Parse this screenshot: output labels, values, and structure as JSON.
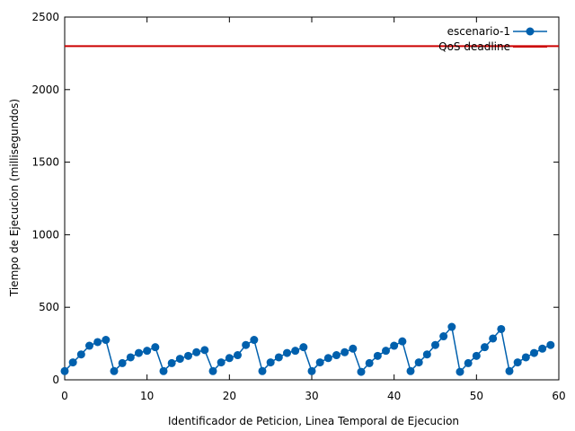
{
  "chart_data": {
    "type": "line",
    "title": "",
    "xlabel": "Identificador de Peticion, Linea Temporal de Ejecucion",
    "ylabel": "Tiempo de Ejecucion (millisegundos)",
    "xlim": [
      0,
      60
    ],
    "ylim": [
      0,
      2500
    ],
    "xticks": [
      0,
      10,
      20,
      30,
      40,
      50,
      60
    ],
    "yticks": [
      0,
      500,
      1000,
      1500,
      2000,
      2500
    ],
    "grid": false,
    "legend_position": "top-right",
    "series": [
      {
        "name": "escenario-1",
        "color": "#0060ad",
        "marker": "circle",
        "x": [
          0,
          1,
          2,
          3,
          4,
          5,
          6,
          7,
          8,
          9,
          10,
          11,
          12,
          13,
          14,
          15,
          16,
          17,
          18,
          19,
          20,
          21,
          22,
          23,
          24,
          25,
          26,
          27,
          28,
          29,
          30,
          31,
          32,
          33,
          34,
          35,
          36,
          37,
          38,
          39,
          40,
          41,
          42,
          43,
          44,
          45,
          46,
          47,
          48,
          49,
          50,
          51,
          52,
          53,
          54,
          55,
          56,
          57,
          58,
          59
        ],
        "values": [
          60,
          120,
          175,
          235,
          260,
          275,
          60,
          115,
          155,
          185,
          200,
          225,
          60,
          115,
          145,
          165,
          190,
          205,
          60,
          120,
          150,
          170,
          240,
          275,
          60,
          120,
          155,
          185,
          200,
          225,
          60,
          120,
          150,
          170,
          190,
          215,
          55,
          115,
          165,
          200,
          235,
          265,
          60,
          120,
          175,
          240,
          300,
          365,
          55,
          115,
          165,
          225,
          285,
          350,
          60,
          120,
          155,
          185,
          215,
          240
        ]
      },
      {
        "name": "QoS deadline",
        "color": "#cc0000",
        "marker": "none",
        "constant": 2300
      }
    ]
  }
}
